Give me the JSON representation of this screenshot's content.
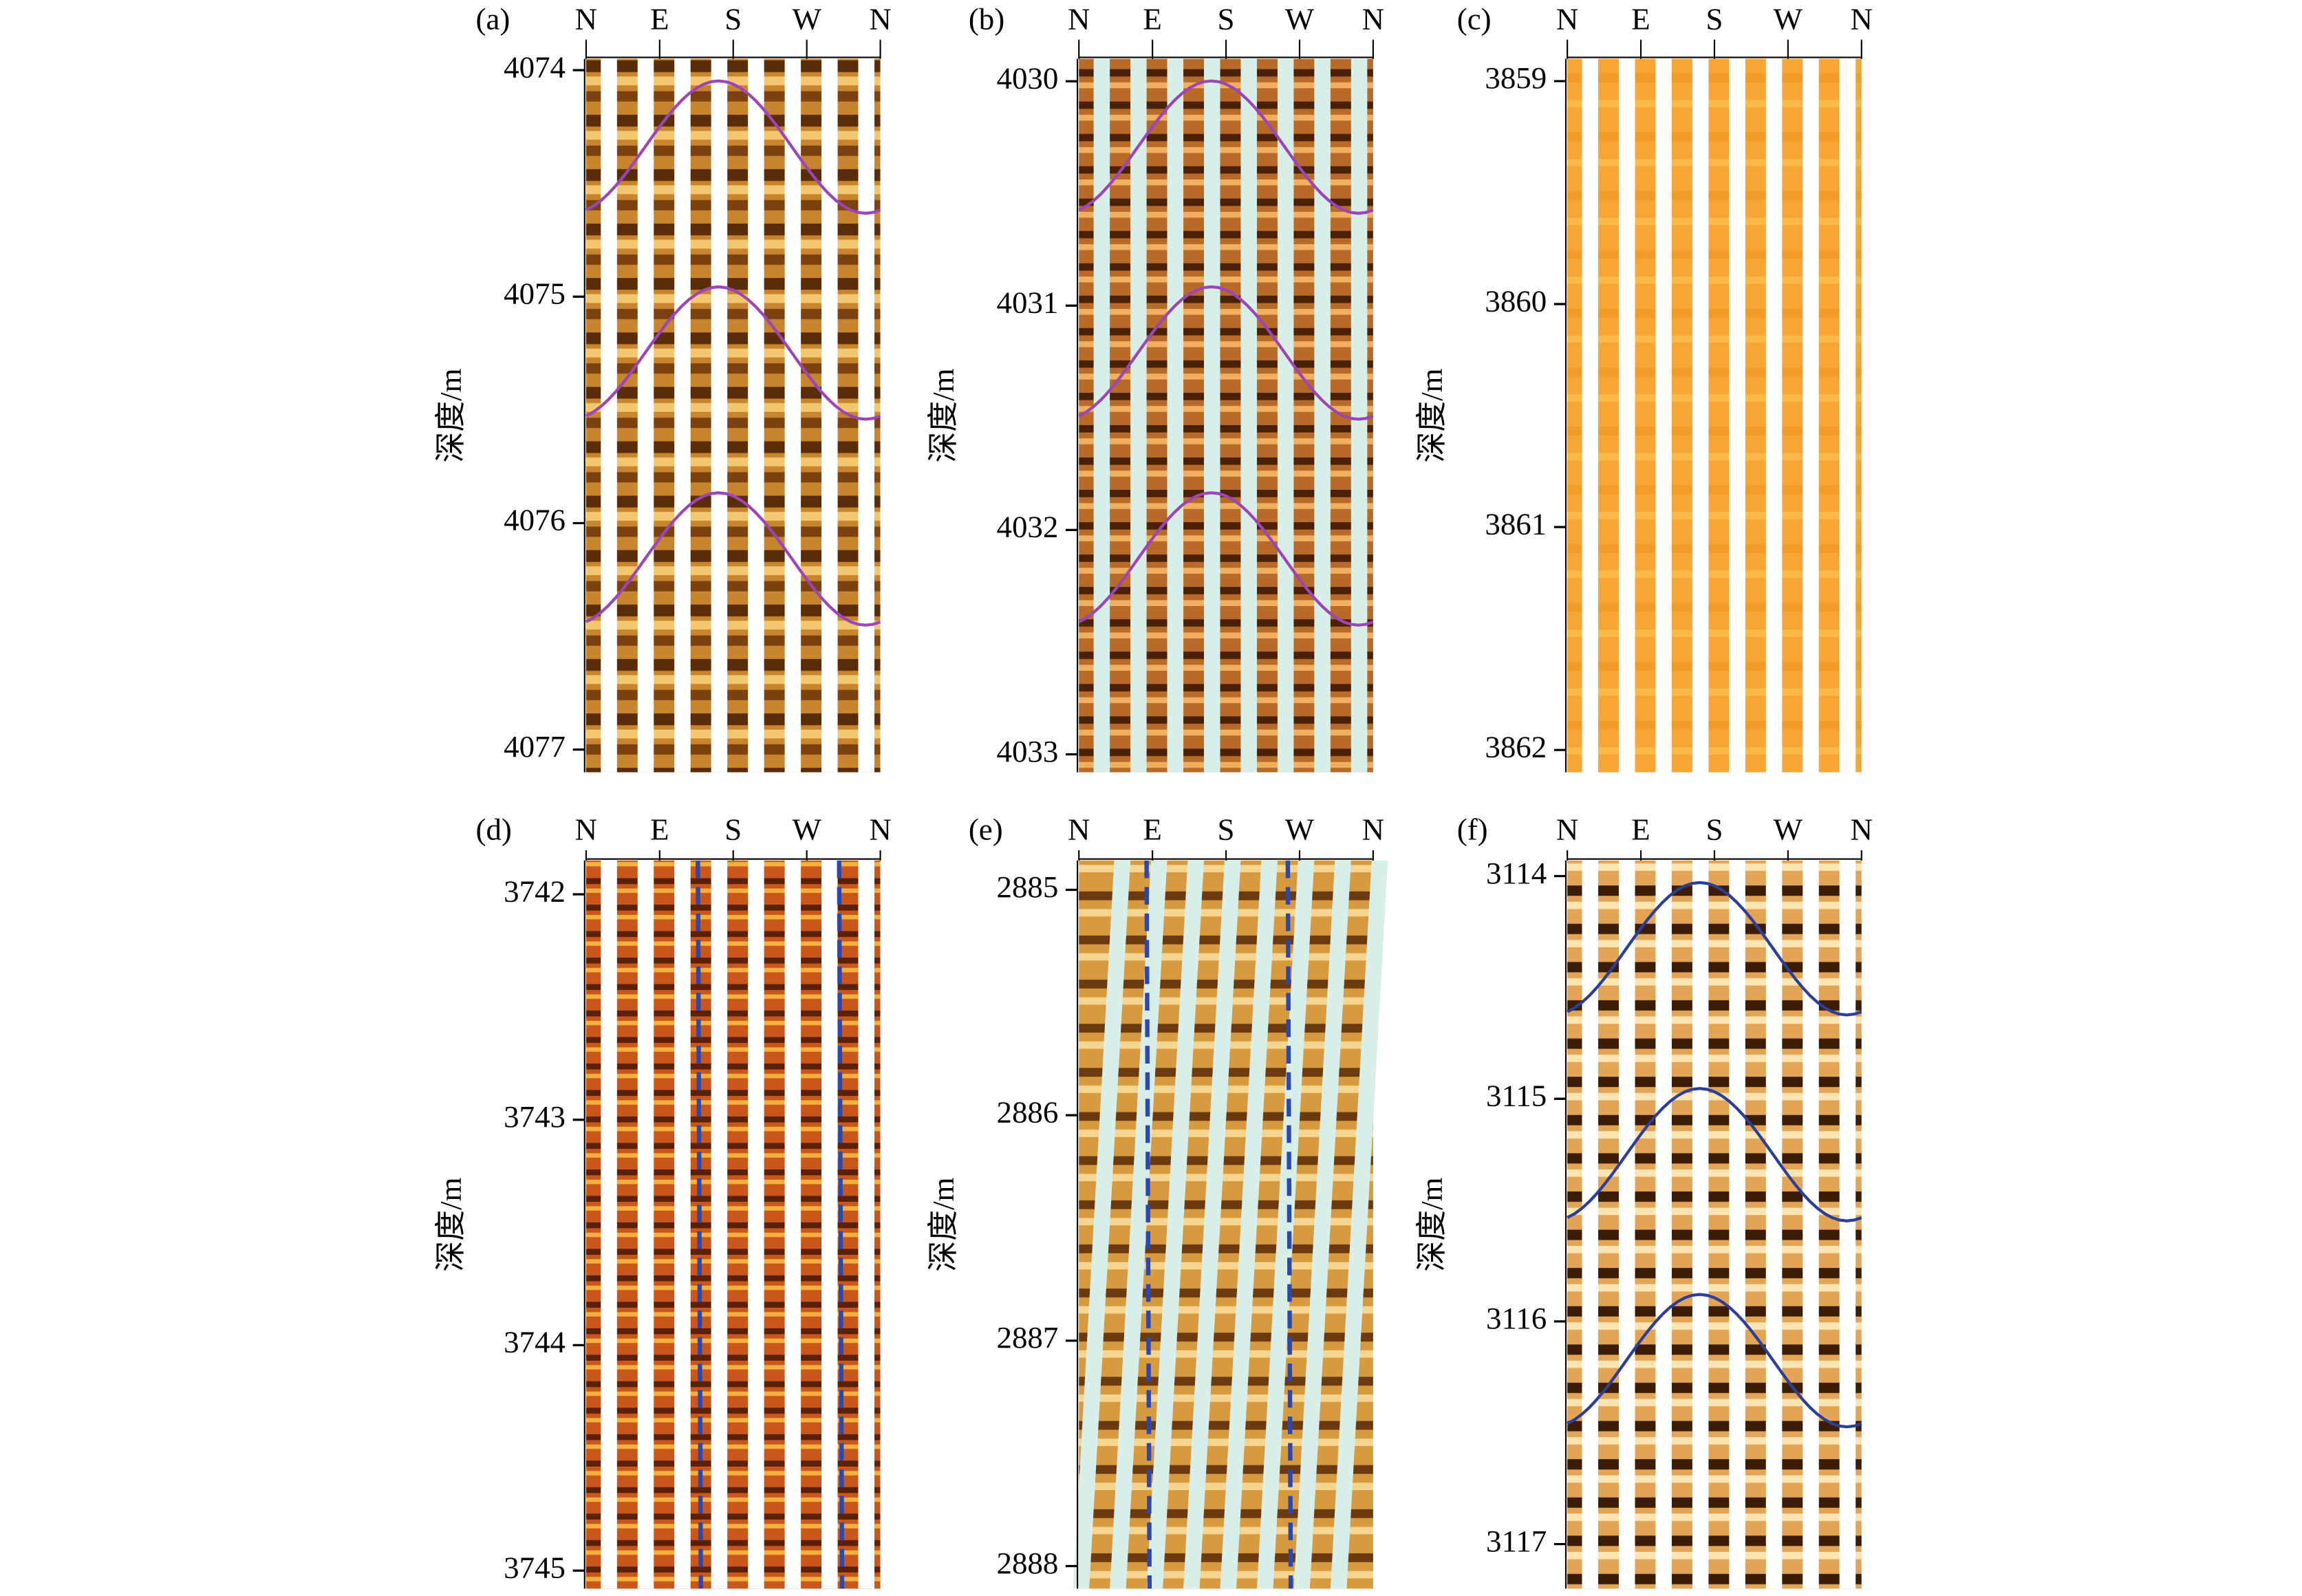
{
  "panels": [
    {
      "label": "(a)",
      "directions": [
        "N",
        "E",
        "S",
        "W",
        "N"
      ],
      "ylabel": "深度/m",
      "ylim": [
        4073.95,
        4077.1
      ],
      "yticks": [
        4074,
        4075,
        4076,
        4077
      ]
    },
    {
      "label": "(b)",
      "directions": [
        "N",
        "E",
        "S",
        "W",
        "N"
      ],
      "ylabel": "深度/m",
      "ylim": [
        4029.9,
        4033.08
      ],
      "yticks": [
        4030,
        4031,
        4032,
        4033
      ]
    },
    {
      "label": "(c)",
      "directions": [
        "N",
        "E",
        "S",
        "W",
        "N"
      ],
      "ylabel": "深度/m",
      "ylim": [
        3858.9,
        3862.1
      ],
      "yticks": [
        3859,
        3860,
        3861,
        3862
      ]
    },
    {
      "label": "(d)",
      "directions": [
        "N",
        "E",
        "S",
        "W",
        "N"
      ],
      "ylabel": "深度/m",
      "ylim": [
        3741.85,
        3745.08
      ],
      "yticks": [
        3742,
        3743,
        3744,
        3745
      ]
    },
    {
      "label": "(e)",
      "directions": [
        "N",
        "E",
        "S",
        "W",
        "N"
      ],
      "ylabel": "深度/m",
      "ylim": [
        2884.87,
        2888.1
      ],
      "yticks": [
        2885,
        2886,
        2887,
        2888
      ]
    },
    {
      "label": "(f)",
      "directions": [
        "N",
        "E",
        "S",
        "W",
        "N"
      ],
      "ylabel": "深度/m",
      "ylim": [
        3113.93,
        3117.2
      ],
      "yticks": [
        3114,
        3115,
        3116,
        3117
      ]
    }
  ]
}
